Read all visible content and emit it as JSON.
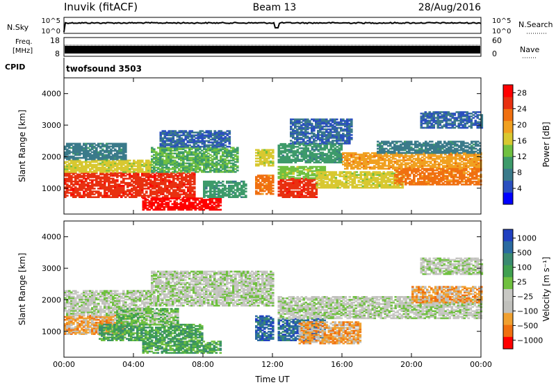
{
  "header": {
    "station": "Inuvik (fitACF)",
    "beam": "Beam 13",
    "date": "28/Aug/2016"
  },
  "sky_panel": {
    "left_label": "N.Sky",
    "right_label": "N.Search",
    "ticks_left": [
      "10^5",
      "10^0"
    ],
    "ticks_right": [
      "10^5",
      "10^0"
    ]
  },
  "freq_panel": {
    "left_label_1": "Freq.",
    "left_label_2": "[MHz]",
    "right_label": "Nave",
    "ticks_left": [
      "18",
      "8"
    ],
    "ticks_right": [
      "60",
      "0"
    ]
  },
  "cpid": {
    "label": "CPID",
    "program": "twofsound 3503"
  },
  "colors": {
    "power_scale": [
      "#0000ff",
      "#2a4fbf",
      "#3a7a8a",
      "#3d9a6a",
      "#70c040",
      "#d8c830",
      "#f0a020",
      "#f07010",
      "#e83010",
      "#ff0000"
    ],
    "velocity_scale": [
      "#2040c0",
      "#2a6aa0",
      "#3a8a70",
      "#40a050",
      "#70c040",
      "#c8c8c4",
      "#c0c0bc",
      "#f0a030",
      "#f07010",
      "#ff0000"
    ]
  },
  "chart_data": [
    {
      "type": "heatmap",
      "name": "power",
      "ylabel": "Slant Range [km]",
      "xlabel": "",
      "x_ticks": [
        "00:00",
        "04:00",
        "08:00",
        "12:00",
        "16:00",
        "20:00",
        "00:00"
      ],
      "xlim_hours": [
        0,
        24
      ],
      "ylim_km": [
        180,
        4500
      ],
      "y_ticks": [
        "1000",
        "2000",
        "3000",
        "4000"
      ],
      "colorbar": {
        "label": "Power [dB]",
        "ticks": [
          "4",
          "8",
          "12",
          "16",
          "20",
          "24",
          "28"
        ],
        "range": [
          0,
          30
        ]
      },
      "regions": [
        {
          "t0": 0.0,
          "t1": 7.5,
          "r0": 700,
          "r1": 1500,
          "level": 26
        },
        {
          "t0": 0.0,
          "t1": 5.0,
          "r0": 1500,
          "r1": 1900,
          "level": 16
        },
        {
          "t0": 0.0,
          "t1": 3.5,
          "r0": 1900,
          "r1": 2400,
          "level": 8
        },
        {
          "t0": 4.5,
          "t1": 9.0,
          "r0": 300,
          "r1": 700,
          "level": 28
        },
        {
          "t0": 5.0,
          "t1": 10.0,
          "r0": 1500,
          "r1": 2300,
          "level": 12
        },
        {
          "t0": 5.5,
          "t1": 9.5,
          "r0": 2300,
          "r1": 2800,
          "level": 6
        },
        {
          "t0": 8.0,
          "t1": 10.5,
          "r0": 700,
          "r1": 1200,
          "level": 10
        },
        {
          "t0": 11.0,
          "t1": 12.0,
          "r0": 800,
          "r1": 1400,
          "level": 22
        },
        {
          "t0": 11.0,
          "t1": 12.0,
          "r0": 1700,
          "r1": 2200,
          "level": 16
        },
        {
          "t0": 12.3,
          "t1": 14.5,
          "r0": 700,
          "r1": 1300,
          "level": 26
        },
        {
          "t0": 12.3,
          "t1": 15.0,
          "r0": 1300,
          "r1": 1700,
          "level": 14
        },
        {
          "t0": 12.3,
          "t1": 16.0,
          "r0": 1800,
          "r1": 2400,
          "level": 10
        },
        {
          "t0": 13.0,
          "t1": 16.5,
          "r0": 2400,
          "r1": 3200,
          "level": 6
        },
        {
          "t0": 14.5,
          "t1": 19.5,
          "r0": 1000,
          "r1": 1500,
          "level": 16
        },
        {
          "t0": 16.0,
          "t1": 24.0,
          "r0": 1600,
          "r1": 2100,
          "level": 20
        },
        {
          "t0": 19.0,
          "t1": 24.0,
          "r0": 1100,
          "r1": 1600,
          "level": 22
        },
        {
          "t0": 18.0,
          "t1": 24.0,
          "r0": 2100,
          "r1": 2500,
          "level": 8
        },
        {
          "t0": 20.5,
          "t1": 24.0,
          "r0": 2900,
          "r1": 3400,
          "level": 6
        }
      ]
    },
    {
      "type": "heatmap",
      "name": "velocity",
      "ylabel": "Slant Range [km]",
      "xlabel": "Time UT",
      "x_ticks": [
        "00:00",
        "04:00",
        "08:00",
        "12:00",
        "16:00",
        "20:00",
        "00:00"
      ],
      "xlim_hours": [
        0,
        24
      ],
      "ylim_km": [
        180,
        4500
      ],
      "y_ticks": [
        "1000",
        "2000",
        "3000",
        "4000"
      ],
      "colorbar": {
        "label": "Velocity [m s⁻¹]",
        "ticks": [
          "1000",
          "500",
          "100",
          "25",
          "−25",
          "−100",
          "−500",
          "−1000"
        ]
      },
      "regions": [
        {
          "t0": 0.0,
          "t1": 3.5,
          "r0": 900,
          "r1": 1500,
          "level": 7
        },
        {
          "t0": 0.0,
          "t1": 5.0,
          "r0": 1500,
          "r1": 2300,
          "level": 5
        },
        {
          "t0": 2.0,
          "t1": 8.0,
          "r0": 700,
          "r1": 1200,
          "level": 3
        },
        {
          "t0": 3.0,
          "t1": 6.5,
          "r0": 1200,
          "r1": 1700,
          "level": 4
        },
        {
          "t0": 4.5,
          "t1": 9.0,
          "r0": 300,
          "r1": 700,
          "level": 3
        },
        {
          "t0": 5.0,
          "t1": 12.0,
          "r0": 1800,
          "r1": 2900,
          "level": 5
        },
        {
          "t0": 11.0,
          "t1": 12.0,
          "r0": 700,
          "r1": 1500,
          "level": 1
        },
        {
          "t0": 12.3,
          "t1": 15.0,
          "r0": 700,
          "r1": 1400,
          "level": 1
        },
        {
          "t0": 13.5,
          "t1": 17.0,
          "r0": 600,
          "r1": 1300,
          "level": 7
        },
        {
          "t0": 12.3,
          "t1": 24.0,
          "r0": 1400,
          "r1": 2100,
          "level": 5
        },
        {
          "t0": 20.0,
          "t1": 24.0,
          "r0": 1900,
          "r1": 2400,
          "level": 7
        },
        {
          "t0": 20.5,
          "t1": 24.0,
          "r0": 2800,
          "r1": 3300,
          "level": 5
        }
      ]
    }
  ]
}
